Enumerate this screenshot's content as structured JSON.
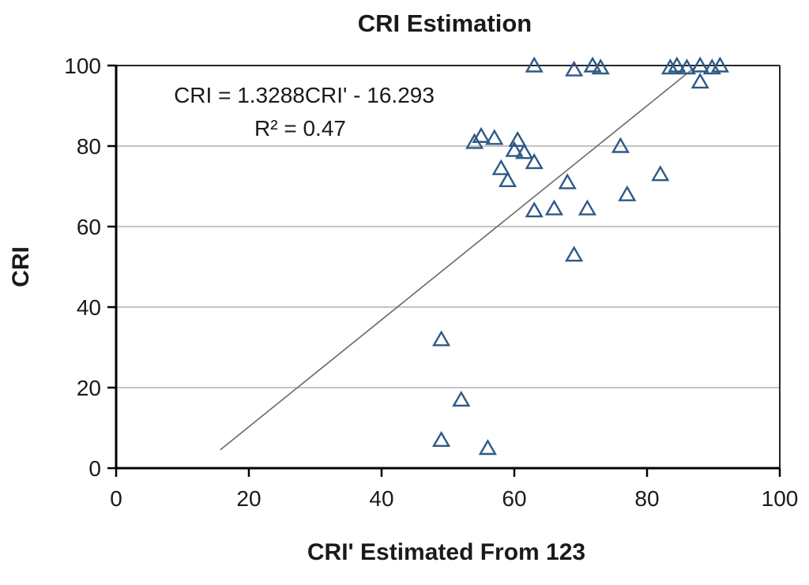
{
  "title": "CRI Estimation",
  "annotation": {
    "equation": "CRI = 1.3288CRI' - 16.293",
    "r_squared": "R² = 0.47"
  },
  "colors": {
    "marker": "#2d5986",
    "trend_line": "#6a6a6a",
    "gridline": "#b0b0b0",
    "axis": "#000000",
    "plot_border": "#262626",
    "text": "#1a1a1a",
    "background": "#ffffff"
  },
  "chart_data": {
    "type": "scatter",
    "title": "CRI Estimation",
    "xlabel": "CRI' Estimated From 123",
    "ylabel": "CRI",
    "xlim": [
      0,
      100
    ],
    "ylim": [
      0,
      100
    ],
    "xticks": [
      0,
      20,
      40,
      60,
      80,
      100
    ],
    "yticks": [
      0,
      20,
      40,
      60,
      80,
      100
    ],
    "grid": "horizontal-only",
    "legend": "none",
    "marker_style": "open-triangle",
    "points": [
      [
        63,
        100
      ],
      [
        69,
        99
      ],
      [
        71.8,
        100
      ],
      [
        73,
        99.5
      ],
      [
        83.5,
        99.5
      ],
      [
        84.5,
        100
      ],
      [
        86,
        99.5
      ],
      [
        88,
        100
      ],
      [
        89.8,
        99.5
      ],
      [
        91,
        100
      ],
      [
        88,
        96
      ],
      [
        54,
        81
      ],
      [
        55,
        82.5
      ],
      [
        57,
        82
      ],
      [
        60.5,
        81.5
      ],
      [
        60,
        79
      ],
      [
        61.5,
        78.5
      ],
      [
        63,
        76
      ],
      [
        58,
        74.5
      ],
      [
        59,
        71.5
      ],
      [
        68,
        71
      ],
      [
        76,
        80
      ],
      [
        82,
        73
      ],
      [
        77,
        68
      ],
      [
        63,
        64
      ],
      [
        66,
        64.5
      ],
      [
        71,
        64.5
      ],
      [
        69,
        53
      ],
      [
        49,
        32
      ],
      [
        52,
        17
      ],
      [
        49,
        7
      ],
      [
        56,
        5
      ]
    ],
    "trendline": {
      "slope": 1.3288,
      "intercept": -16.293,
      "equation_label": "CRI = 1.3288CRI' - 16.293",
      "r2_label": "R² = 0.47",
      "x_start": 15.7,
      "x_end": 87.5
    }
  }
}
